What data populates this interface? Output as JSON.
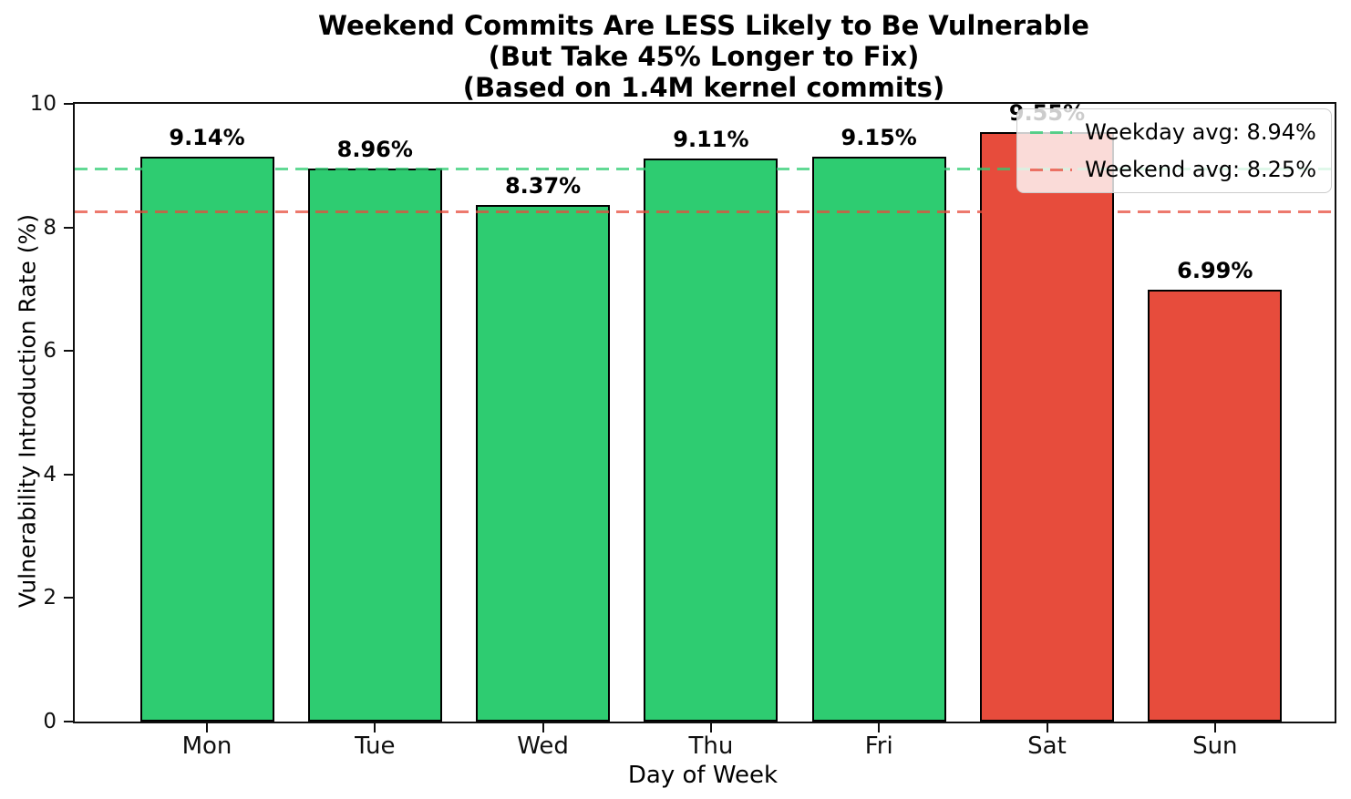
{
  "figure": {
    "title_lines": [
      "Weekend Commits Are LESS Likely to Be Vulnerable",
      "(But Take 45% Longer to Fix)",
      "(Based on 1.4M kernel commits)"
    ],
    "background": "#ffffff"
  },
  "chart_data": {
    "type": "bar",
    "title": "Weekend Commits Are LESS Likely to Be Vulnerable\n(But Take 45% Longer to Fix)\n(Based on 1.4M kernel commits)",
    "xlabel": "Day of Week",
    "ylabel": "Vulnerability Introduction Rate (%)",
    "categories": [
      "Mon",
      "Tue",
      "Wed",
      "Thu",
      "Fri",
      "Sat",
      "Sun"
    ],
    "values": [
      9.14,
      8.96,
      8.37,
      9.11,
      9.15,
      9.55,
      6.99
    ],
    "bar_labels": [
      "9.14%",
      "8.96%",
      "8.37%",
      "9.11%",
      "9.15%",
      "9.55%",
      "6.99%"
    ],
    "bar_types": [
      "weekday",
      "weekday",
      "weekday",
      "weekday",
      "weekday",
      "weekend",
      "weekend"
    ],
    "colors": {
      "weekday": "#2ecc71",
      "weekend": "#e74c3c",
      "bar_edge": "#000000",
      "weekday_avg_line": "#2ecc71",
      "weekend_avg_line": "#e74c3c"
    },
    "ylim": [
      0,
      10
    ],
    "yticks": [
      0,
      2,
      4,
      6,
      8,
      10
    ],
    "reference_lines": [
      {
        "name": "weekday-avg",
        "label": "Weekday avg: 8.94%",
        "value": 8.94,
        "color": "#2ecc71"
      },
      {
        "name": "weekend-avg",
        "label": "Weekend avg: 8.25%",
        "value": 8.25,
        "color": "#e74c3c"
      }
    ],
    "legend_position": "upper right",
    "grid": false
  }
}
